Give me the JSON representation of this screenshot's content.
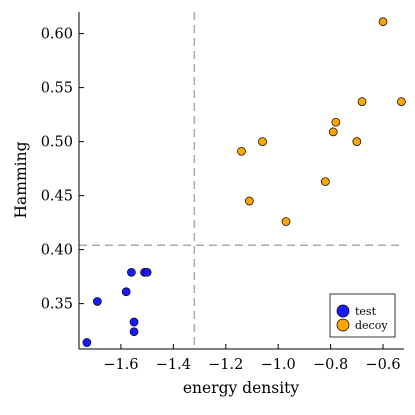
{
  "chart_data": {
    "type": "scatter",
    "title": "",
    "xlabel": "energy density",
    "ylabel": "Hamming",
    "xlim": [
      -1.76,
      -0.52
    ],
    "ylim": [
      0.308,
      0.62
    ],
    "grid": false,
    "legend_position": "bottom-right",
    "x_ticks": [
      {
        "value": -1.6,
        "label": "−1.6"
      },
      {
        "value": -1.4,
        "label": "−1.4"
      },
      {
        "value": -1.2,
        "label": "−1.2"
      },
      {
        "value": -1.0,
        "label": "−1.0"
      },
      {
        "value": -0.8,
        "label": "−0.8"
      },
      {
        "value": -0.6,
        "label": "−0.6"
      }
    ],
    "y_ticks": [
      {
        "value": 0.35,
        "label": "0.35"
      },
      {
        "value": 0.4,
        "label": "0.40"
      },
      {
        "value": 0.45,
        "label": "0.45"
      },
      {
        "value": 0.5,
        "label": "0.50"
      },
      {
        "value": 0.55,
        "label": "0.55"
      },
      {
        "value": 0.6,
        "label": "0.60"
      }
    ],
    "threshold_lines": {
      "vertical_x": -1.32,
      "horizontal_y": 0.404,
      "color": "#aaaaaa"
    },
    "series": [
      {
        "name": "test",
        "color": "#1a1aff",
        "x": [
          -1.73,
          -1.69,
          -1.58,
          -1.56,
          -1.55,
          -1.55,
          -1.51,
          -1.5
        ],
        "y": [
          0.314,
          0.352,
          0.361,
          0.379,
          0.333,
          0.324,
          0.379,
          0.379
        ]
      },
      {
        "name": "decoy",
        "color": "#ffa500",
        "x": [
          -1.14,
          -1.11,
          -1.06,
          -0.97,
          -0.82,
          -0.79,
          -0.78,
          -0.7,
          -0.68,
          -0.6,
          -0.53
        ],
        "y": [
          0.491,
          0.445,
          0.5,
          0.426,
          0.463,
          0.509,
          0.518,
          0.5,
          0.537,
          0.611,
          0.537
        ]
      }
    ]
  }
}
